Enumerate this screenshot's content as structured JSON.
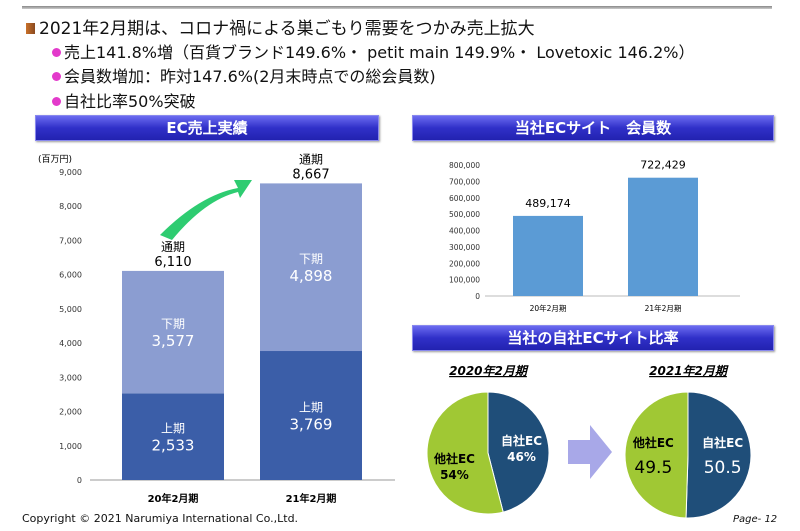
{
  "heading": "2021年2月期は、コロナ禍による巣ごもり需要をつかみ売上拡大",
  "bullets": [
    "売上141.8%増（百貨ブランド149.6%・ petit main 149.9%・ Lovetoxic 146.2%）",
    "会員数増加：昨対147.6%(2月末時点での総会員数)",
    "自社比率50%突破"
  ],
  "banners": {
    "ec_sales": "EC売上実績",
    "members": "当社ECサイト　会員数",
    "ratio": "当社の自社ECサイト比率"
  },
  "footer": "Copyright © 2021 Narumiya International Co.,Ltd.",
  "page": "Page- 12",
  "colors": {
    "lower": "#3b5ea8",
    "upper": "#8b9dd1",
    "member_bar": "#5b9bd5",
    "own": "#1f4e79",
    "other": "#a0c834",
    "arrow": "#2ecc71"
  },
  "chart_data": [
    {
      "type": "bar",
      "title": "EC売上実績",
      "ylabel": "(百万円)",
      "ylim": [
        0,
        9000
      ],
      "yticks": [
        "0",
        "1,000",
        "2,000",
        "3,000",
        "4,000",
        "5,000",
        "6,000",
        "7,000",
        "8,000",
        "9,000"
      ],
      "categories": [
        "20年2月期",
        "21年2月期"
      ],
      "series": [
        {
          "name": "上期",
          "values": [
            2533,
            3769
          ],
          "labels": [
            "2,533",
            "3,769"
          ]
        },
        {
          "name": "下期",
          "values": [
            3577,
            4898
          ],
          "labels": [
            "3,577",
            "4,898"
          ]
        }
      ],
      "totals": {
        "name": "通期",
        "values": [
          6110,
          8667
        ],
        "labels": [
          "6,110",
          "8,667"
        ]
      }
    },
    {
      "type": "bar",
      "title": "当社ECサイト　会員数",
      "ylim": [
        0,
        800000
      ],
      "yticks": [
        "0",
        "100,000",
        "200,000",
        "300,000",
        "400,000",
        "500,000",
        "600,000",
        "700,000",
        "800,000"
      ],
      "categories": [
        "20年2月期",
        "21年2月期"
      ],
      "values": [
        489174,
        722429
      ],
      "labels": [
        "489,174",
        "722,429"
      ]
    },
    {
      "type": "pie",
      "title": "2020年2月期",
      "slices": [
        {
          "name": "自社EC",
          "value": 46,
          "label": "46%"
        },
        {
          "name": "他社EC",
          "value": 54,
          "label": "54%"
        }
      ]
    },
    {
      "type": "pie",
      "title": "2021年2月期",
      "slices": [
        {
          "name": "自社EC",
          "value": 50.5,
          "label": "50.5"
        },
        {
          "name": "他社EC",
          "value": 49.5,
          "label": "49.5"
        }
      ]
    }
  ]
}
